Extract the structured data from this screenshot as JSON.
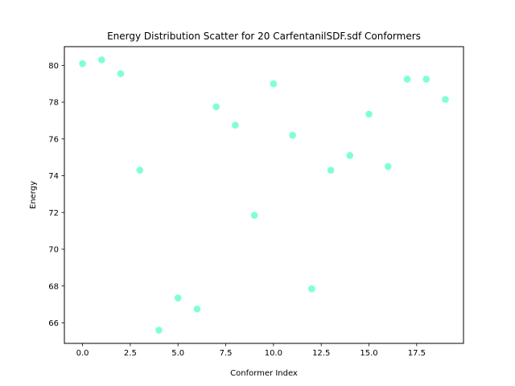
{
  "chart_data": {
    "type": "scatter",
    "title": "Energy Distribution Scatter for 20 CarfentanilSDF.sdf Conformers",
    "xlabel": "Conformer Index",
    "ylabel": "Energy",
    "xlim": [
      -0.95,
      19.95
    ],
    "ylim": [
      64.88,
      81.02
    ],
    "xticks": [
      0.0,
      2.5,
      5.0,
      7.5,
      10.0,
      12.5,
      15.0,
      17.5
    ],
    "xtick_labels": [
      "0.0",
      "2.5",
      "5.0",
      "7.5",
      "10.0",
      "12.5",
      "15.0",
      "17.5"
    ],
    "yticks": [
      66,
      68,
      70,
      72,
      74,
      76,
      78,
      80
    ],
    "ytick_labels": [
      "66",
      "68",
      "70",
      "72",
      "74",
      "76",
      "78",
      "80"
    ],
    "grid": false,
    "marker_color": "#7fffd4",
    "x": [
      0,
      1,
      2,
      3,
      4,
      5,
      6,
      7,
      8,
      9,
      10,
      11,
      12,
      13,
      14,
      15,
      16,
      17,
      18,
      19
    ],
    "y": [
      80.1,
      80.3,
      79.55,
      74.3,
      65.6,
      67.35,
      66.75,
      77.75,
      76.75,
      71.85,
      79.0,
      76.2,
      67.85,
      74.3,
      75.1,
      77.35,
      74.5,
      79.25,
      79.25,
      78.15
    ]
  }
}
